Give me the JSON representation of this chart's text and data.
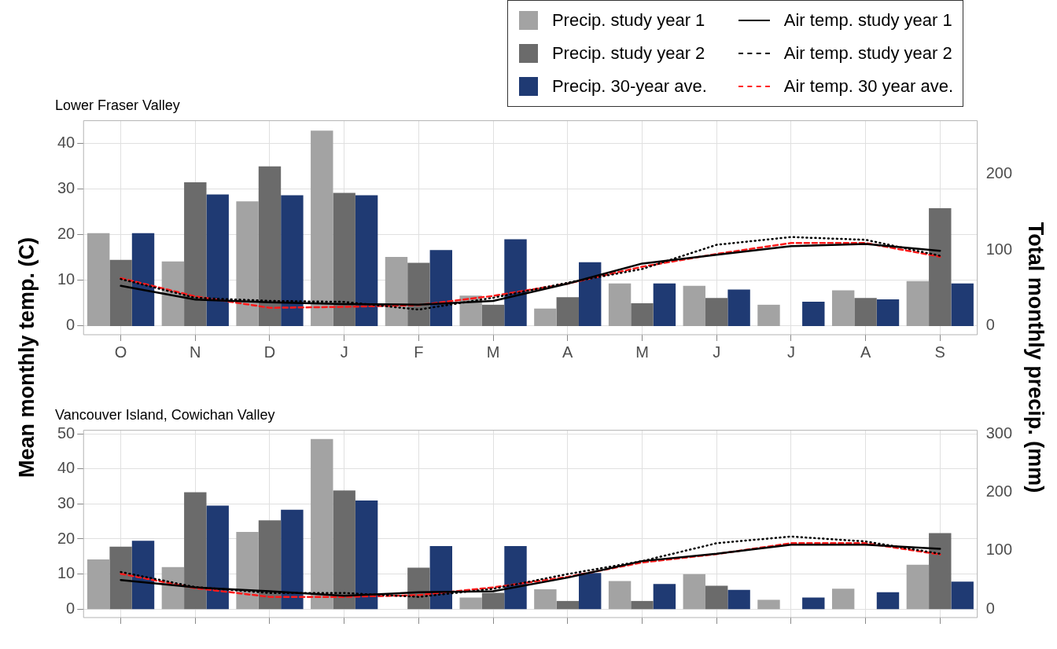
{
  "chart_data": [
    {
      "type": "bar",
      "title": "Lower Fraser Valley",
      "ylabel": "Mean monthly temp. (C)",
      "y2label": "Total monthly precip. (mm)",
      "categories": [
        "O",
        "N",
        "D",
        "J",
        "F",
        "M",
        "A",
        "M",
        "J",
        "J",
        "A",
        "S"
      ],
      "ylim": [
        -1.9,
        45
      ],
      "yticks": [
        0,
        10,
        20,
        30,
        40
      ],
      "y2lim": [
        -11.4,
        270
      ],
      "y2ticks": [
        0,
        100,
        200
      ],
      "grid": true,
      "legend": "top right",
      "marker": "none",
      "series": [
        {
          "name": "Precip. study year 1",
          "type": "bar",
          "axis": "y2",
          "color": "#a3a3a3",
          "values": [
            122,
            85,
            164,
            257,
            91,
            40,
            23,
            56,
            53,
            28,
            47,
            59
          ]
        },
        {
          "name": "Precip. study year 2",
          "type": "bar",
          "axis": "y2",
          "color": "#6b6b6b",
          "values": [
            87,
            189,
            210,
            175,
            83,
            28,
            38,
            30,
            37,
            null,
            37,
            155
          ]
        },
        {
          "name": "Precip. 30-year ave.",
          "type": "bar",
          "axis": "y2",
          "color": "#1f3a73",
          "values": [
            122,
            173,
            172,
            172,
            100,
            114,
            84,
            56,
            48,
            32,
            35,
            56
          ]
        },
        {
          "name": "Air temp. study year 1",
          "type": "line",
          "line_style": "solid",
          "color": "#000000",
          "values": [
            8.8,
            5.8,
            5.2,
            4.8,
            4.7,
            5.5,
            9.3,
            13.7,
            15.6,
            17.5,
            18,
            16.5
          ]
        },
        {
          "name": "Air temp. study year 2",
          "type": "line",
          "line_style": "dotted",
          "color": "#000000",
          "values": [
            10.3,
            6.2,
            5.5,
            5.3,
            3.6,
            6.2,
            9.5,
            12.5,
            17.8,
            19.5,
            18.9,
            15.4
          ]
        },
        {
          "name": "Air temp. 30 year ave.",
          "type": "line",
          "line_style": "dashed",
          "color": "#ff1a1a",
          "values": [
            10.5,
            6.5,
            4,
            4.2,
            4.6,
            6.6,
            9.3,
            13,
            15.8,
            18.2,
            18.2,
            15.2
          ]
        }
      ]
    },
    {
      "type": "bar",
      "title": "Vancouver Island, Cowichan Valley",
      "categories": [
        null,
        null,
        null,
        null,
        null,
        null,
        null,
        null,
        null,
        null,
        null,
        null
      ],
      "ylim": [
        -2.4,
        51
      ],
      "yticks": [
        0,
        10,
        20,
        30,
        40,
        50
      ],
      "y2lim": [
        -14.4,
        306
      ],
      "y2ticks": [
        0,
        100,
        200,
        300
      ],
      "grid": true,
      "marker": "none",
      "series": [
        {
          "type": "bar",
          "axis": "y2",
          "color": "#a3a3a3",
          "values": [
            85,
            72,
            132,
            291,
            null,
            20,
            34,
            48,
            60,
            16,
            35,
            76
          ]
        },
        {
          "type": "bar",
          "axis": "y2",
          "color": "#6b6b6b",
          "values": [
            107,
            200,
            152,
            203,
            71,
            28,
            14,
            14,
            40,
            null,
            0,
            130
          ]
        },
        {
          "type": "bar",
          "axis": "y2",
          "color": "#1f3a73",
          "values": [
            117,
            177,
            170,
            186,
            108,
            108,
            62,
            43,
            33,
            20,
            29,
            47
          ]
        },
        {
          "type": "line",
          "line_style": "solid",
          "color": "#000000",
          "values": [
            8.3,
            6.2,
            5.1,
            3.8,
            4.8,
            5.1,
            9,
            13.7,
            15.8,
            18.4,
            18.4,
            17.2
          ]
        },
        {
          "type": "line",
          "line_style": "dotted",
          "color": "#000000",
          "values": [
            10.6,
            6.3,
            4.6,
            4.6,
            3.5,
            5.8,
            10,
            13.7,
            18.8,
            20.7,
            19.3,
            15.8
          ]
        },
        {
          "type": "line",
          "line_style": "dashed",
          "color": "#ff1a1a",
          "values": [
            10.1,
            6,
            3.5,
            3.5,
            4,
            6.2,
            9.2,
            13.3,
            15.7,
            18.8,
            18.8,
            15.6
          ]
        }
      ]
    }
  ]
}
